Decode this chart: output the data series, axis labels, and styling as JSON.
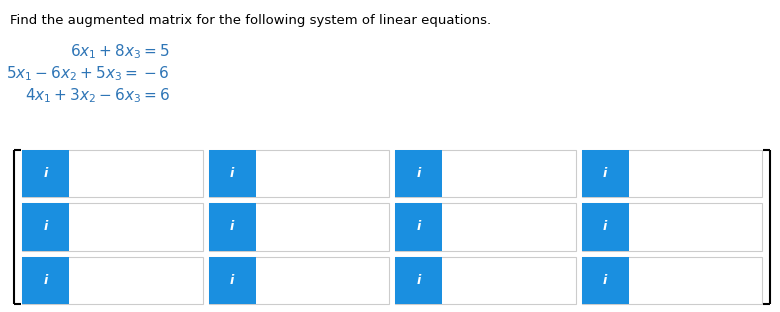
{
  "title": "Find the augmented matrix for the following system of linear equations.",
  "title_fontsize": 9.5,
  "title_color": "#000000",
  "bg_color": "#ffffff",
  "eq_fontsize": 11,
  "eq_color": "#2e75b6",
  "bracket_color": "#000000",
  "cell_bg": "#ffffff",
  "cell_border": "#cccccc",
  "icon_bg": "#1a8fe0",
  "icon_text": "i",
  "icon_color": "#ffffff",
  "n_rows": 3,
  "n_cols": 4,
  "bracket_lw": 1.5
}
